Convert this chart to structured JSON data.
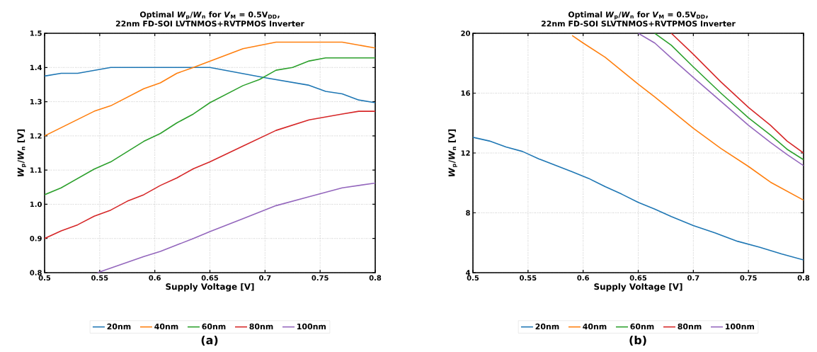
{
  "chart_data": [
    {
      "type": "line",
      "title": "Optimal *W*$_{p}$/*W*$_{n}$ for *V*$_{M}$ = 0.5V$_{DD}$,",
      "subtitle": "22nm FD-SOI LVTNMOS+RVTPMOS Inverter",
      "xlabel": "Supply Voltage [V]",
      "ylabel": "*W*$_{p}$/*W*$_{n}$ [V]",
      "annotations": [
        "(a)"
      ],
      "xlim": [
        0.5,
        0.8
      ],
      "ylim": [
        0.8,
        1.5
      ],
      "xticks": [
        0.5,
        0.55,
        0.6,
        0.65,
        0.7,
        0.75,
        0.8
      ],
      "yticks": [
        0.8,
        0.9,
        {
          "value": 1.0,
          "label": "1.0"
        },
        1.1,
        1.2,
        1.3,
        1.4,
        1.5
      ],
      "grid": true,
      "legend": "bottom",
      "series": [
        {
          "name": "20nm",
          "color": "#1f77b4",
          "x": [
            0.5,
            0.515,
            0.53,
            0.56,
            0.65,
            0.7,
            0.74,
            0.755,
            0.77,
            0.785,
            0.8
          ],
          "values": [
            1.375,
            1.383,
            1.383,
            1.4,
            1.4,
            1.37,
            1.348,
            1.33,
            1.323,
            1.305,
            1.297
          ]
        },
        {
          "name": "40nm",
          "color": "#ff7f0e",
          "x": [
            0.5,
            0.545,
            0.56,
            0.59,
            0.605,
            0.62,
            0.635,
            0.68,
            0.71,
            0.77,
            0.8
          ],
          "values": [
            1.2,
            1.272,
            1.288,
            1.338,
            1.355,
            1.383,
            1.4,
            1.455,
            1.474,
            1.474,
            1.457
          ]
        },
        {
          "name": "60nm",
          "color": "#2ca02c",
          "x": [
            0.5,
            0.515,
            0.545,
            0.56,
            0.59,
            0.605,
            0.62,
            0.635,
            0.65,
            0.68,
            0.695,
            0.71,
            0.725,
            0.74,
            0.755,
            0.8
          ],
          "values": [
            1.028,
            1.048,
            1.103,
            1.124,
            1.184,
            1.207,
            1.238,
            1.264,
            1.297,
            1.347,
            1.365,
            1.392,
            1.4,
            1.419,
            1.428,
            1.428
          ]
        },
        {
          "name": "80nm",
          "color": "#d62728",
          "x": [
            0.5,
            0.515,
            0.53,
            0.545,
            0.56,
            0.575,
            0.59,
            0.605,
            0.62,
            0.635,
            0.65,
            0.68,
            0.71,
            0.74,
            0.77,
            0.785,
            0.8
          ],
          "values": [
            0.9,
            0.922,
            0.94,
            0.965,
            0.983,
            1.009,
            1.028,
            1.055,
            1.077,
            1.104,
            1.124,
            1.17,
            1.216,
            1.247,
            1.264,
            1.272,
            1.272
          ]
        },
        {
          "name": "100nm",
          "color": "#9467bd",
          "x": [
            0.548,
            0.59,
            0.605,
            0.635,
            0.65,
            0.68,
            0.71,
            0.74,
            0.77,
            0.8
          ],
          "values": [
            0.8,
            0.847,
            0.862,
            0.9,
            0.92,
            0.958,
            0.996,
            1.022,
            1.048,
            1.062
          ]
        }
      ]
    },
    {
      "type": "line",
      "title": "Optimal *W*$_{p}$/*W*$_{n}$ for *V*$_{M}$ = 0.5V$_{DD}$,",
      "subtitle": "22nm FD-SOI SLVTNMOS+RVTPMOS Inverter",
      "xlabel": "Supply Voltage [V]",
      "ylabel": "*W*$_{p}$/*W*$_{n}$ [V]",
      "annotations": [
        "(b)"
      ],
      "xlim": [
        0.5,
        0.8
      ],
      "ylim": [
        4,
        20
      ],
      "xticks": [
        0.5,
        0.55,
        0.6,
        0.65,
        0.7,
        0.75,
        0.8
      ],
      "yticks": [
        4,
        8,
        12,
        16,
        20
      ],
      "grid": true,
      "legend": "bottom",
      "series": [
        {
          "name": "20nm",
          "color": "#1f77b4",
          "x": [
            0.5,
            0.515,
            0.53,
            0.545,
            0.56,
            0.59,
            0.605,
            0.62,
            0.635,
            0.65,
            0.665,
            0.68,
            0.7,
            0.72,
            0.74,
            0.76,
            0.78,
            0.8
          ],
          "values": [
            13.05,
            12.8,
            12.4,
            12.1,
            11.6,
            10.75,
            10.3,
            9.75,
            9.25,
            8.7,
            8.25,
            7.75,
            7.15,
            6.65,
            6.1,
            5.7,
            5.25,
            4.85
          ]
        },
        {
          "name": "40nm",
          "color": "#ff7f0e",
          "x": [
            0.59,
            0.6,
            0.62,
            0.65,
            0.665,
            0.68,
            0.7,
            0.725,
            0.75,
            0.77,
            0.8
          ],
          "values": [
            19.85,
            19.35,
            18.4,
            16.6,
            15.75,
            14.85,
            13.65,
            12.3,
            11.1,
            10.05,
            8.85
          ]
        },
        {
          "name": "60nm",
          "color": "#2ca02c",
          "x": [
            0.665,
            0.68,
            0.7,
            0.725,
            0.75,
            0.77,
            0.785,
            0.8
          ],
          "values": [
            20,
            19.2,
            17.75,
            16.0,
            14.35,
            13.2,
            12.25,
            11.55
          ]
        },
        {
          "name": "80nm",
          "color": "#d62728",
          "x": [
            0.68,
            0.7,
            0.725,
            0.75,
            0.77,
            0.785,
            0.8
          ],
          "values": [
            20,
            18.6,
            16.75,
            15.05,
            13.85,
            12.8,
            12.0
          ]
        },
        {
          "name": "100nm",
          "color": "#9467bd",
          "x": [
            0.65,
            0.665,
            0.68,
            0.7,
            0.725,
            0.75,
            0.77,
            0.785,
            0.8
          ],
          "values": [
            20,
            19.35,
            18.35,
            17.05,
            15.45,
            13.85,
            12.7,
            11.9,
            11.15
          ]
        }
      ]
    }
  ]
}
